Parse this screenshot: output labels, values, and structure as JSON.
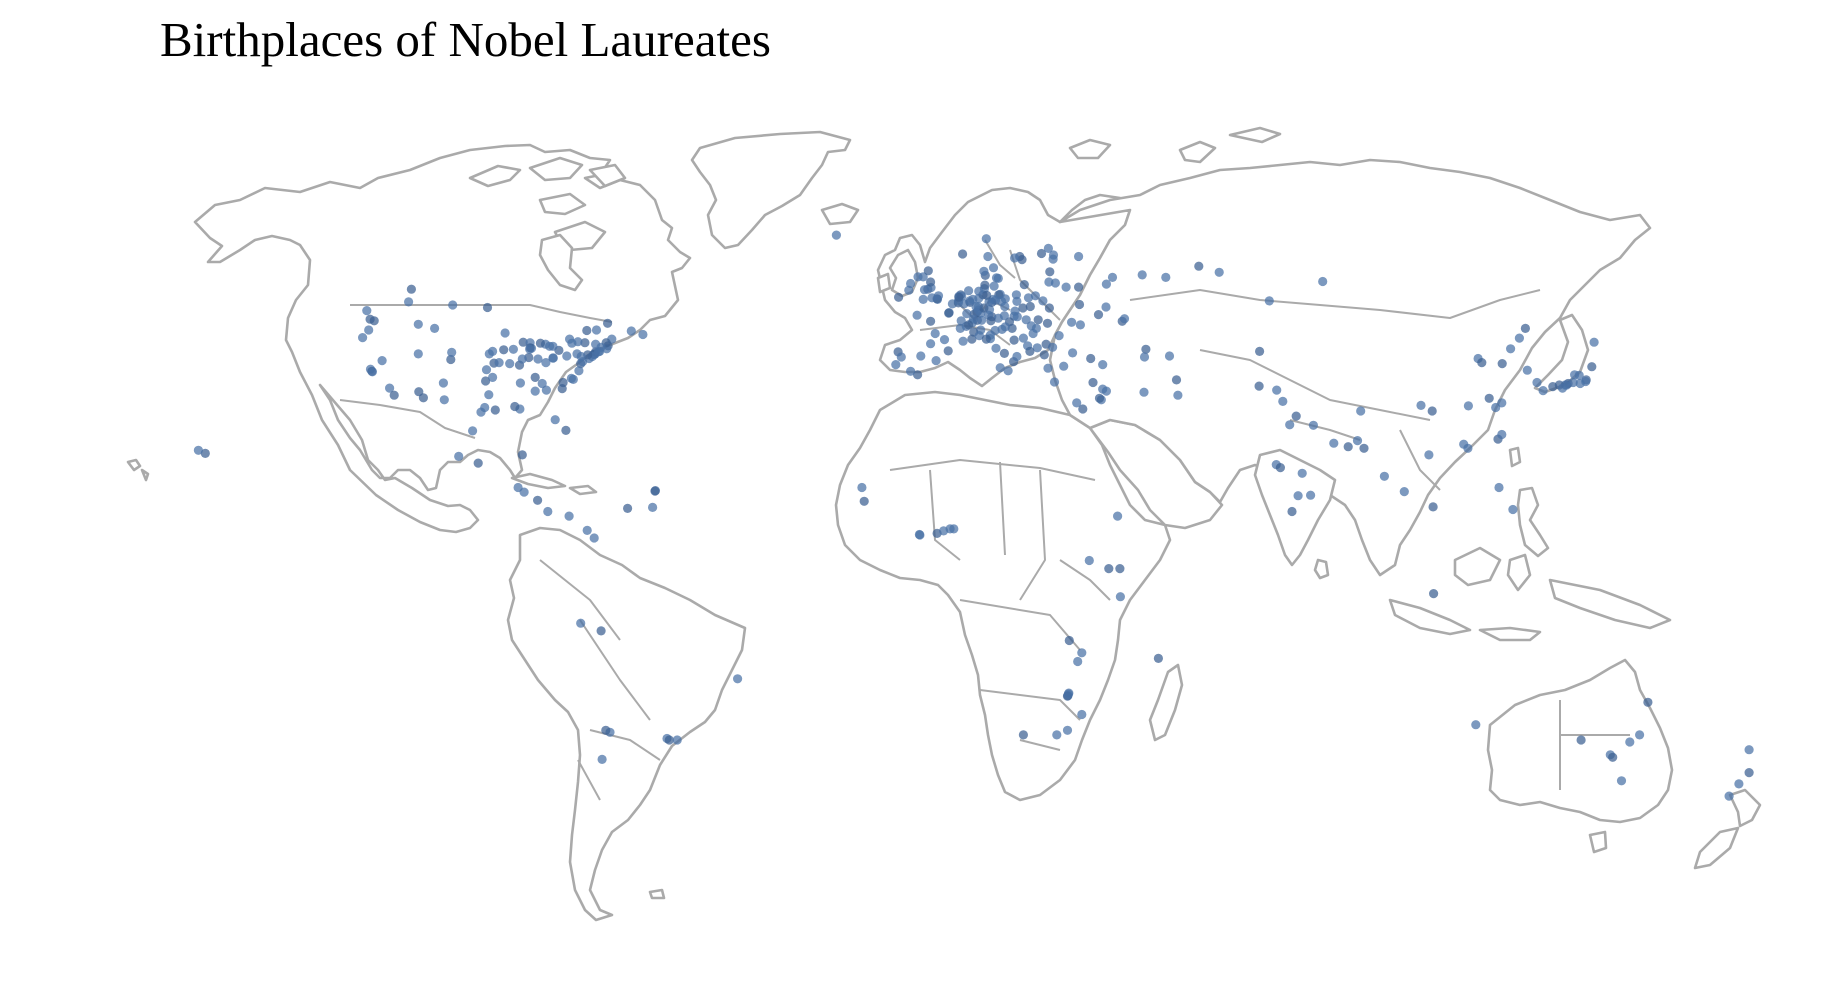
{
  "title": "Birthplaces of Nobel Laureates",
  "colors": {
    "dot": "#4a72a6",
    "dot_dark": "#3b5f92",
    "land_stroke": "#aaaaaa",
    "land_fill": "#ffffff"
  },
  "chart_data": {
    "type": "scatter",
    "title": "Birthplaces of Nobel Laureates",
    "projection": "equirectangular world map",
    "point_unit": "longitude, latitude (degrees)",
    "points": [
      [
        -122.4,
        47.6
      ],
      [
        -123.1,
        49.3
      ],
      [
        -122.7,
        45.5
      ],
      [
        -121.5,
        47.3
      ],
      [
        -124.0,
        44.0
      ],
      [
        -122.3,
        37.8
      ],
      [
        -122.0,
        37.4
      ],
      [
        -121.9,
        37.3
      ],
      [
        -118.2,
        34.1
      ],
      [
        -117.2,
        32.7
      ],
      [
        -119.8,
        39.5
      ],
      [
        -112.0,
        40.8
      ],
      [
        -111.9,
        33.4
      ],
      [
        -112.0,
        46.6
      ],
      [
        -106.6,
        35.1
      ],
      [
        -105.0,
        39.7
      ],
      [
        -108.5,
        45.8
      ],
      [
        -104.8,
        41.1
      ],
      [
        -110.9,
        32.2
      ],
      [
        -106.4,
        31.8
      ],
      [
        -97.7,
        30.3
      ],
      [
        -95.4,
        29.8
      ],
      [
        -96.8,
        32.8
      ],
      [
        -98.5,
        29.4
      ],
      [
        -97.5,
        35.5
      ],
      [
        -96.0,
        36.2
      ],
      [
        -97.3,
        37.7
      ],
      [
        -95.7,
        39.0
      ],
      [
        -96.7,
        40.8
      ],
      [
        -96.0,
        41.3
      ],
      [
        -93.6,
        41.6
      ],
      [
        -93.3,
        44.9
      ],
      [
        -94.6,
        39.1
      ],
      [
        -90.2,
        38.6
      ],
      [
        -92.3,
        38.9
      ],
      [
        -91.5,
        41.7
      ],
      [
        -89.4,
        43.1
      ],
      [
        -87.9,
        43.0
      ],
      [
        -87.6,
        41.9
      ],
      [
        -88.2,
        40.1
      ],
      [
        -89.6,
        39.8
      ],
      [
        -86.2,
        39.8
      ],
      [
        -86.8,
        36.2
      ],
      [
        -84.5,
        39.1
      ],
      [
        -83.0,
        40.0
      ],
      [
        -81.7,
        41.5
      ],
      [
        -83.0,
        42.3
      ],
      [
        -84.6,
        42.7
      ],
      [
        -85.7,
        42.9
      ],
      [
        -83.7,
        42.3
      ],
      [
        -80.0,
        40.4
      ],
      [
        -77.0,
        38.9
      ],
      [
        -76.6,
        39.3
      ],
      [
        -75.2,
        39.9
      ],
      [
        -74.0,
        40.7
      ],
      [
        -73.9,
        40.8
      ],
      [
        -74.2,
        40.7
      ],
      [
        -73.8,
        41.2
      ],
      [
        -73.2,
        41.2
      ],
      [
        -72.9,
        41.3
      ],
      [
        -71.1,
        42.4
      ],
      [
        -71.4,
        41.8
      ],
      [
        -70.3,
        43.7
      ],
      [
        -71.5,
        43.0
      ],
      [
        -72.6,
        42.1
      ],
      [
        -73.8,
        42.7
      ],
      [
        -76.1,
        43.0
      ],
      [
        -77.6,
        43.2
      ],
      [
        -78.9,
        42.9
      ],
      [
        -75.7,
        45.4
      ],
      [
        -73.6,
        45.5
      ],
      [
        -79.4,
        43.7
      ],
      [
        -71.2,
        46.8
      ],
      [
        -63.6,
        44.6
      ],
      [
        -66.1,
        45.3
      ],
      [
        -80.2,
        25.8
      ],
      [
        -82.5,
        27.9
      ],
      [
        -84.4,
        33.7
      ],
      [
        -81.0,
        34.0
      ],
      [
        -78.6,
        35.8
      ],
      [
        -79.0,
        36.0
      ],
      [
        -80.8,
        35.2
      ],
      [
        -77.4,
        37.5
      ],
      [
        -90.1,
        30.0
      ],
      [
        -91.2,
        30.5
      ],
      [
        -86.8,
        33.5
      ],
      [
        -90.0,
        35.1
      ],
      [
        -97.1,
        49.9
      ],
      [
        -104.6,
        50.4
      ],
      [
        -114.1,
        51.0
      ],
      [
        -113.5,
        53.5
      ],
      [
        -82.9,
        40.0
      ],
      [
        -85.3,
        35.0
      ],
      [
        -87.9,
        42.0
      ],
      [
        -88.0,
        41.7
      ],
      [
        -74.5,
        40.3
      ],
      [
        -75.5,
        40.6
      ],
      [
        -76.9,
        40.3
      ],
      [
        -77.8,
        40.8
      ],
      [
        -99.1,
        19.4
      ],
      [
        -103.3,
        20.7
      ],
      [
        -100.3,
        25.7
      ],
      [
        -89.6,
        21.0
      ],
      [
        -90.5,
        14.6
      ],
      [
        -89.2,
        13.7
      ],
      [
        -86.3,
        12.1
      ],
      [
        -84.1,
        9.9
      ],
      [
        -79.5,
        9.0
      ],
      [
        -66.9,
        10.5
      ],
      [
        -61.5,
        10.7
      ],
      [
        -60.9,
        14.0
      ],
      [
        -61.0,
        13.9
      ],
      [
        -74.1,
        4.7
      ],
      [
        -75.6,
        6.2
      ],
      [
        -72.6,
        -13.5
      ],
      [
        -77.0,
        -12.0
      ],
      [
        -70.7,
        -33.4
      ],
      [
        -71.6,
        -33.0
      ],
      [
        -72.4,
        -38.7
      ],
      [
        -58.4,
        -34.6
      ],
      [
        -57.9,
        -34.9
      ],
      [
        -56.2,
        -34.9
      ],
      [
        -43.2,
        -22.9
      ],
      [
        -157.9,
        21.3
      ],
      [
        -159.4,
        21.9
      ],
      [
        -9.1,
        38.7
      ],
      [
        -8.6,
        41.2
      ],
      [
        -7.9,
        40.2
      ],
      [
        -3.7,
        40.4
      ],
      [
        -4.4,
        36.7
      ],
      [
        -5.9,
        37.4
      ],
      [
        -0.4,
        39.5
      ],
      [
        2.2,
        41.4
      ],
      [
        -1.6,
        42.8
      ],
      [
        -0.1,
        51.5
      ],
      [
        -0.2,
        51.6
      ],
      [
        -1.3,
        51.8
      ],
      [
        0.1,
        52.2
      ],
      [
        -2.2,
        53.5
      ],
      [
        -2.9,
        53.4
      ],
      [
        -1.5,
        53.8
      ],
      [
        -1.6,
        54.9
      ],
      [
        -3.2,
        55.9
      ],
      [
        -4.3,
        55.9
      ],
      [
        -2.1,
        57.1
      ],
      [
        -3.2,
        51.5
      ],
      [
        -6.3,
        53.3
      ],
      [
        -8.5,
        51.9
      ],
      [
        -5.9,
        54.6
      ],
      [
        2.4,
        48.9
      ],
      [
        2.3,
        48.8
      ],
      [
        4.8,
        45.8
      ],
      [
        5.4,
        43.3
      ],
      [
        7.3,
        43.7
      ],
      [
        1.4,
        43.6
      ],
      [
        -0.6,
        44.8
      ],
      [
        -1.6,
        47.2
      ],
      [
        -4.5,
        48.4
      ],
      [
        3.1,
        50.6
      ],
      [
        7.8,
        48.6
      ],
      [
        6.2,
        48.7
      ],
      [
        5.0,
        47.3
      ],
      [
        4.4,
        50.8
      ],
      [
        4.4,
        51.2
      ],
      [
        5.6,
        50.6
      ],
      [
        4.9,
        52.4
      ],
      [
        4.5,
        52.1
      ],
      [
        5.1,
        52.1
      ],
      [
        4.5,
        51.9
      ],
      [
        6.6,
        53.2
      ],
      [
        8.7,
        50.1
      ],
      [
        6.9,
        50.9
      ],
      [
        6.8,
        51.2
      ],
      [
        7.5,
        51.5
      ],
      [
        8.4,
        49.0
      ],
      [
        8.7,
        49.4
      ],
      [
        9.2,
        48.8
      ],
      [
        11.6,
        48.1
      ],
      [
        10.9,
        48.4
      ],
      [
        11.1,
        49.5
      ],
      [
        9.9,
        49.8
      ],
      [
        8.2,
        50.1
      ],
      [
        8.8,
        51.7
      ],
      [
        9.7,
        52.4
      ],
      [
        10.0,
        53.6
      ],
      [
        8.8,
        53.1
      ],
      [
        10.1,
        54.3
      ],
      [
        12.1,
        54.1
      ],
      [
        13.4,
        52.5
      ],
      [
        13.1,
        52.4
      ],
      [
        12.4,
        51.3
      ],
      [
        13.7,
        51.1
      ],
      [
        11.6,
        50.9
      ],
      [
        11.0,
        51.0
      ],
      [
        11.9,
        51.5
      ],
      [
        10.5,
        52.3
      ],
      [
        14.5,
        51.6
      ],
      [
        7.4,
        46.9
      ],
      [
        8.5,
        47.4
      ],
      [
        7.6,
        47.6
      ],
      [
        6.1,
        46.2
      ],
      [
        6.6,
        46.5
      ],
      [
        9.4,
        47.4
      ],
      [
        16.4,
        48.2
      ],
      [
        15.4,
        47.1
      ],
      [
        14.3,
        48.3
      ],
      [
        13.0,
        47.8
      ],
      [
        11.4,
        47.3
      ],
      [
        14.4,
        50.1
      ],
      [
        16.6,
        49.2
      ],
      [
        18.3,
        49.8
      ],
      [
        17.1,
        48.1
      ],
      [
        19.0,
        47.5
      ],
      [
        21.6,
        47.5
      ],
      [
        20.1,
        46.3
      ],
      [
        21.0,
        52.2
      ],
      [
        19.9,
        50.1
      ],
      [
        17.0,
        51.1
      ],
      [
        16.9,
        52.4
      ],
      [
        18.6,
        54.4
      ],
      [
        19.5,
        51.8
      ],
      [
        22.6,
        51.2
      ],
      [
        24.0,
        49.8
      ],
      [
        25.3,
        54.7
      ],
      [
        23.9,
        54.9
      ],
      [
        24.1,
        56.9
      ],
      [
        24.8,
        59.4
      ],
      [
        27.6,
        53.9
      ],
      [
        30.5,
        50.5
      ],
      [
        30.7,
        46.5
      ],
      [
        36.2,
        50.0
      ],
      [
        34.6,
        48.5
      ],
      [
        28.8,
        47.0
      ],
      [
        26.1,
        44.4
      ],
      [
        23.6,
        46.8
      ],
      [
        21.2,
        45.8
      ],
      [
        20.5,
        44.8
      ],
      [
        23.3,
        42.7
      ],
      [
        24.7,
        42.1
      ],
      [
        18.4,
        43.9
      ],
      [
        15.98,
        45.8
      ],
      [
        14.5,
        46.1
      ],
      [
        13.8,
        45.6
      ],
      [
        16.4,
        43.5
      ],
      [
        19.3,
        42.4
      ],
      [
        21.4,
        42.0
      ],
      [
        19.8,
        41.3
      ],
      [
        12.5,
        41.9
      ],
      [
        9.2,
        45.5
      ],
      [
        7.7,
        45.1
      ],
      [
        11.3,
        43.8
      ],
      [
        11.3,
        44.5
      ],
      [
        14.3,
        40.9
      ],
      [
        12.3,
        45.4
      ],
      [
        8.9,
        44.4
      ],
      [
        10.4,
        43.7
      ],
      [
        13.4,
        38.1
      ],
      [
        15.1,
        37.5
      ],
      [
        16.3,
        39.3
      ],
      [
        17.0,
        40.3
      ],
      [
        23.7,
        38.0
      ],
      [
        22.9,
        40.6
      ],
      [
        25.1,
        35.3
      ],
      [
        29.0,
        41.0
      ],
      [
        32.9,
        39.9
      ],
      [
        27.1,
        38.4
      ],
      [
        35.5,
        38.7
      ],
      [
        33.4,
        35.2
      ],
      [
        37.6,
        55.8
      ],
      [
        30.3,
        59.9
      ],
      [
        39.7,
        47.2
      ],
      [
        44.0,
        56.3
      ],
      [
        49.1,
        55.8
      ],
      [
        30.3,
        53.9
      ],
      [
        40.2,
        47.7
      ],
      [
        36.3,
        54.5
      ],
      [
        44.8,
        41.7
      ],
      [
        44.5,
        40.2
      ],
      [
        49.9,
        40.4
      ],
      [
        18.1,
        59.3
      ],
      [
        11.97,
        57.7
      ],
      [
        13.0,
        55.6
      ],
      [
        17.6,
        59.9
      ],
      [
        16.5,
        59.6
      ],
      [
        10.75,
        59.9
      ],
      [
        5.3,
        60.4
      ],
      [
        10.4,
        63.4
      ],
      [
        24.9,
        60.2
      ],
      [
        22.3,
        60.5
      ],
      [
        23.8,
        61.5
      ],
      [
        12.6,
        55.7
      ],
      [
        10.2,
        56.2
      ],
      [
        9.9,
        57.0
      ],
      [
        -21.9,
        64.1
      ],
      [
        56.2,
        58.0
      ],
      [
        60.6,
        56.8
      ],
      [
        82.9,
        55.0
      ],
      [
        69.3,
        41.3
      ],
      [
        71.4,
        51.2
      ],
      [
        35.2,
        31.8
      ],
      [
        34.8,
        32.1
      ],
      [
        35.5,
        33.9
      ],
      [
        36.3,
        33.5
      ],
      [
        31.2,
        30.0
      ],
      [
        29.9,
        31.2
      ],
      [
        44.4,
        33.3
      ],
      [
        51.4,
        35.7
      ],
      [
        51.7,
        32.7
      ],
      [
        38.7,
        9.0
      ],
      [
        36.8,
        -1.3
      ],
      [
        32.6,
        0.3
      ],
      [
        39.3,
        -6.8
      ],
      [
        39.2,
        -1.3
      ],
      [
        -3.9,
        5.3
      ],
      [
        -4.0,
        5.4
      ],
      [
        -0.2,
        5.6
      ],
      [
        1.2,
        6.1
      ],
      [
        3.4,
        6.5
      ],
      [
        -15.9,
        11.9
      ],
      [
        -16.4,
        14.6
      ],
      [
        2.6,
        6.5
      ],
      [
        47.5,
        -18.9
      ],
      [
        28.0,
        -26.2
      ],
      [
        28.2,
        -25.7
      ],
      [
        27.9,
        -26.3
      ],
      [
        28.1,
        -25.9
      ],
      [
        31.0,
        -29.9
      ],
      [
        18.4,
        -33.9
      ],
      [
        27.9,
        -33.0
      ],
      [
        25.6,
        -33.9
      ],
      [
        28.3,
        -15.4
      ],
      [
        31.0,
        -17.8
      ],
      [
        30.1,
        -19.5
      ],
      [
        69.2,
        34.5
      ],
      [
        74.3,
        31.5
      ],
      [
        73.0,
        33.7
      ],
      [
        77.2,
        28.6
      ],
      [
        75.8,
        26.9
      ],
      [
        80.9,
        26.8
      ],
      [
        88.4,
        22.6
      ],
      [
        85.3,
        23.3
      ],
      [
        72.9,
        19.1
      ],
      [
        73.8,
        18.5
      ],
      [
        78.5,
        17.4
      ],
      [
        80.3,
        13.1
      ],
      [
        76.3,
        9.9
      ],
      [
        77.6,
        13.0
      ],
      [
        90.4,
        23.8
      ],
      [
        91.8,
        22.3
      ],
      [
        96.2,
        16.8
      ],
      [
        100.5,
        13.8
      ],
      [
        106.7,
        10.8
      ],
      [
        105.8,
        21.0
      ],
      [
        116.4,
        39.9
      ],
      [
        117.2,
        39.1
      ],
      [
        121.5,
        31.2
      ],
      [
        120.2,
        30.3
      ],
      [
        118.8,
        32.1
      ],
      [
        113.3,
        23.1
      ],
      [
        114.2,
        22.3
      ],
      [
        106.5,
        29.6
      ],
      [
        104.1,
        30.7
      ],
      [
        114.3,
        30.6
      ],
      [
        126.6,
        45.8
      ],
      [
        123.4,
        41.8
      ],
      [
        125.3,
        43.9
      ],
      [
        121.6,
        38.9
      ],
      [
        127.0,
        37.6
      ],
      [
        129.1,
        35.2
      ],
      [
        120.7,
        24.1
      ],
      [
        121.5,
        25.0
      ],
      [
        91.1,
        29.6
      ],
      [
        139.7,
        35.7
      ],
      [
        139.6,
        35.4
      ],
      [
        135.5,
        34.7
      ],
      [
        135.8,
        35.0
      ],
      [
        135.2,
        34.7
      ],
      [
        136.9,
        35.2
      ],
      [
        132.5,
        34.4
      ],
      [
        130.4,
        33.6
      ],
      [
        141.4,
        43.1
      ],
      [
        140.9,
        38.3
      ],
      [
        138.2,
        36.6
      ],
      [
        137.2,
        36.7
      ],
      [
        133.9,
        34.7
      ],
      [
        134.6,
        34.1
      ],
      [
        138.4,
        35.0
      ],
      [
        106.8,
        -6.2
      ],
      [
        120.9,
        14.6
      ],
      [
        123.9,
        10.3
      ],
      [
        153.0,
        -27.5
      ],
      [
        151.2,
        -33.9
      ],
      [
        144.9,
        -37.8
      ],
      [
        138.6,
        -34.9
      ],
      [
        147.3,
        -42.9
      ],
      [
        115.9,
        -31.9
      ],
      [
        145.4,
        -38.3
      ],
      [
        149.1,
        -35.3
      ],
      [
        174.8,
        -36.8
      ],
      [
        174.8,
        -41.3
      ],
      [
        172.6,
        -43.5
      ],
      [
        170.5,
        -45.9
      ]
    ]
  }
}
